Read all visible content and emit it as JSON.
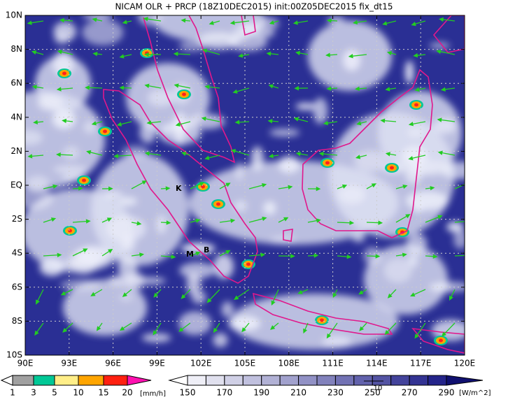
{
  "title": "NICAM OLR + PRCP (18Z10DEC2015) init:00Z05DEC2015 fix_dt15",
  "map": {
    "lat_labels": [
      "10N",
      "8N",
      "6N",
      "4N",
      "2N",
      "EQ",
      "2S",
      "4S",
      "6S",
      "8S",
      "10S"
    ],
    "lon_labels": [
      "90E",
      "93E",
      "96E",
      "99E",
      "102E",
      "105E",
      "108E",
      "111E",
      "114E",
      "117E",
      "120E"
    ],
    "labels": [
      "K",
      "M",
      "B"
    ],
    "vector_scale": "10"
  },
  "precip_legend": {
    "levels": [
      1,
      3,
      5,
      10,
      15,
      20
    ],
    "unit": "[mm/h]"
  },
  "olr_legend": {
    "levels": [
      150,
      170,
      190,
      210,
      230,
      250,
      270,
      290
    ],
    "unit": "[W/m^2]"
  }
}
